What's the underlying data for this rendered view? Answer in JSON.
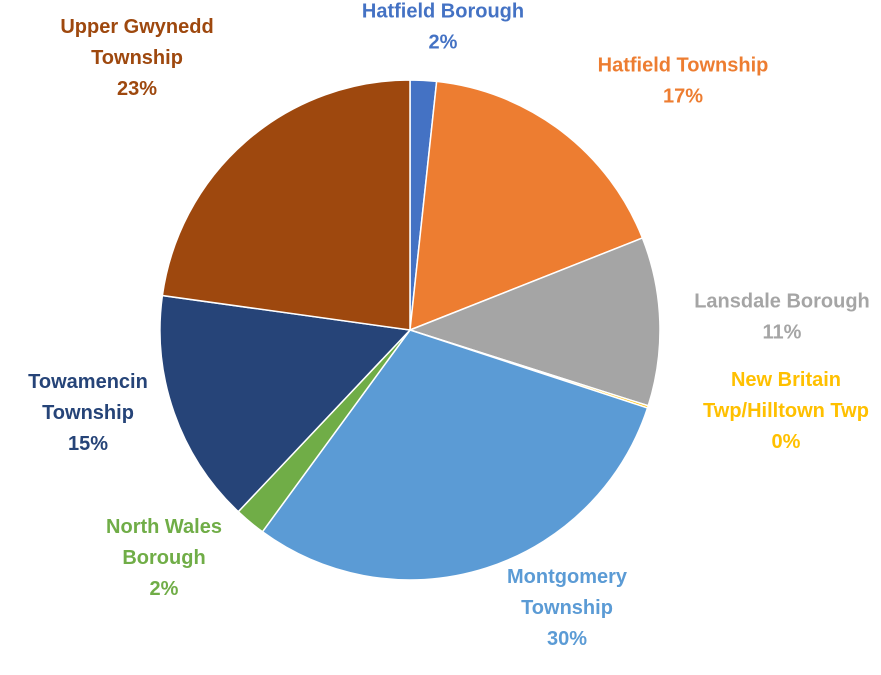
{
  "chart_data": {
    "type": "pie",
    "title": "",
    "start_angle_deg": 0,
    "direction": "clockwise",
    "slices": [
      {
        "label": "Hatfield Borough",
        "label_lines": [
          "Hatfield Borough"
        ],
        "value": 1.7,
        "display": "2%",
        "color": "#4472C4"
      },
      {
        "label": "Hatfield Township",
        "label_lines": [
          "Hatfield Township"
        ],
        "value": 17.3,
        "display": "17%",
        "color": "#ED7D31"
      },
      {
        "label": "Lansdale Borough",
        "label_lines": [
          "Lansdale Borough"
        ],
        "value": 10.9,
        "display": "11%",
        "color": "#A5A5A5"
      },
      {
        "label": "New Britain Twp/Hilltown Twp",
        "label_lines": [
          "New Britain",
          "Twp/Hilltown Twp"
        ],
        "value": 0.15,
        "display": "0%",
        "color": "#FFC000"
      },
      {
        "label": "Montgomery Township",
        "label_lines": [
          "Montgomery",
          "Township"
        ],
        "value": 30.0,
        "display": "30%",
        "color": "#5B9BD5"
      },
      {
        "label": "North Wales Borough",
        "label_lines": [
          "North Wales",
          "Borough"
        ],
        "value": 2.0,
        "display": "2%",
        "color": "#70AD47"
      },
      {
        "label": "Towamencin Township",
        "label_lines": [
          "Towamencin",
          "Township"
        ],
        "value": 15.15,
        "display": "15%",
        "color": "#264478"
      },
      {
        "label": "Upper Gwynedd Township",
        "label_lines": [
          "Upper Gwynedd",
          "Township"
        ],
        "value": 22.8,
        "display": "23%",
        "color": "#9E480E"
      }
    ]
  }
}
